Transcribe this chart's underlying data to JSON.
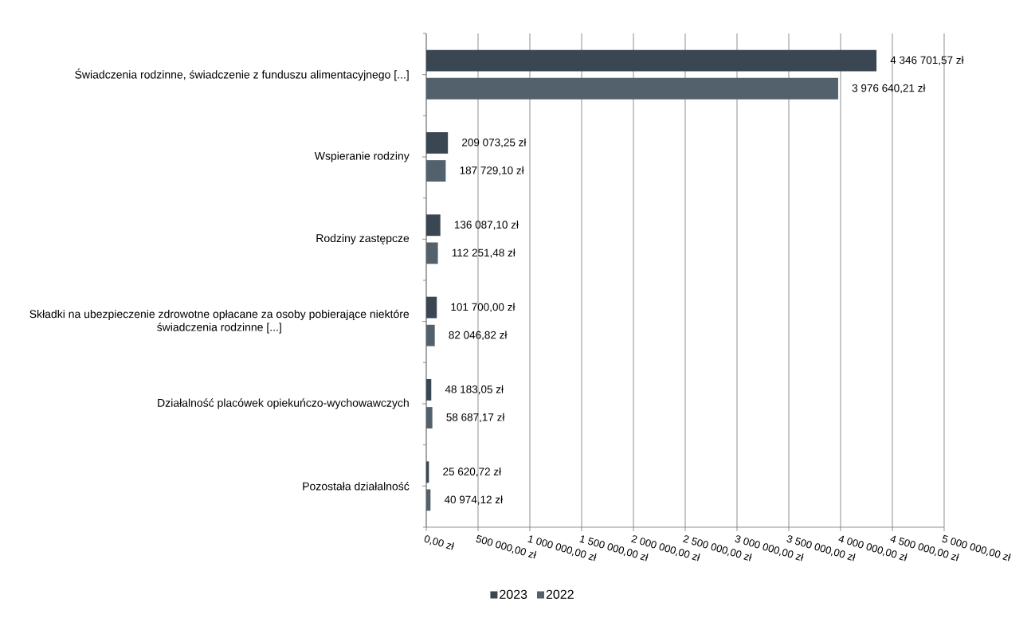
{
  "chart_data": {
    "type": "bar",
    "orientation": "horizontal",
    "categories": [
      "Świadczenia rodzinne, świadczenie z funduszu alimentacyjnego [...]",
      "Wspieranie rodziny",
      "Rodziny zastępcze",
      "Składki na ubezpieczenie zdrowotne opłacane za osoby pobierające niektóre świadczenia rodzinne [...]",
      "Działalność placówek opiekuńczo-wychowawczych",
      "Pozostała działalność"
    ],
    "series": [
      {
        "name": "2023",
        "color": "#3a4652",
        "values": [
          4346701.57,
          209073.25,
          136087.1,
          101700.0,
          48183.05,
          25620.72
        ],
        "value_labels": [
          "4 346 701,57 zł",
          "209 073,25 zł",
          "136 087,10 zł",
          "101 700,00 zł",
          "48 183,05 zł",
          "25 620,72 zł"
        ]
      },
      {
        "name": "2022",
        "color": "#53616c",
        "values": [
          3976640.21,
          187729.1,
          112251.48,
          82046.82,
          58687.17,
          40974.12
        ],
        "value_labels": [
          "3 976 640,21 zł",
          "187 729,10 zł",
          "112 251,48 zł",
          "82 046,82 zł",
          "58 687,17 zł",
          "40 974,12 zł"
        ]
      }
    ],
    "xlim": [
      0,
      5000000
    ],
    "xticks": [
      {
        "value": 0,
        "label": "0,00 zł"
      },
      {
        "value": 500000,
        "label": "500 000,00 zł"
      },
      {
        "value": 1000000,
        "label": "1 000 000,00 zł"
      },
      {
        "value": 1500000,
        "label": "1 500 000,00 zł"
      },
      {
        "value": 2000000,
        "label": "2 000 000,00 zł"
      },
      {
        "value": 2500000,
        "label": "2 500 000,00 zł"
      },
      {
        "value": 3000000,
        "label": "3 000 000,00 zł"
      },
      {
        "value": 3500000,
        "label": "3 500 000,00 zł"
      },
      {
        "value": 4000000,
        "label": "4 000 000,00 zł"
      },
      {
        "value": 4500000,
        "label": "4 500 000,00 zł"
      },
      {
        "value": 5000000,
        "label": "5 000 000,00 zł"
      }
    ],
    "grid": "x",
    "legend": "bottom"
  }
}
